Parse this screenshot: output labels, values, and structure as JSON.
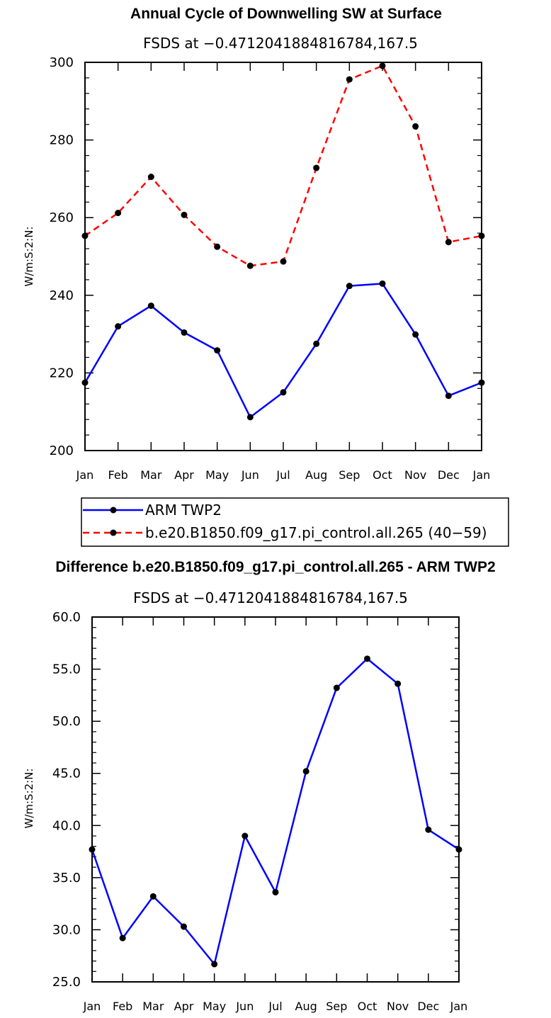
{
  "chart_data": [
    {
      "type": "line",
      "title": "Annual Cycle of Downwelling SW at Surface",
      "subtitle": "FSDS at −0.4712041884816784,167.5",
      "ylabel": "W/m:S:2:N:",
      "xlabel": "",
      "categories": [
        "Jan",
        "Feb",
        "Mar",
        "Apr",
        "May",
        "Jun",
        "Jul",
        "Aug",
        "Sep",
        "Oct",
        "Nov",
        "Dec",
        "Jan"
      ],
      "ylim": [
        200,
        300
      ],
      "yticks": [
        200,
        220,
        240,
        260,
        280,
        300
      ],
      "ytick_labels": [
        "200",
        "220",
        "240",
        "260",
        "280",
        "300"
      ],
      "series": [
        {
          "name": "ARM TWP2",
          "color": "#0000ff",
          "dash": "solid",
          "values": [
            217.5,
            232.0,
            237.3,
            230.4,
            225.8,
            208.6,
            215.0,
            227.5,
            242.4,
            243.0,
            229.9,
            214.1,
            217.5
          ]
        },
        {
          "name": "b.e20.B1850.f09_g17.pi_control.all.265 (40−59)",
          "color": "#ff0000",
          "dash": "dashed",
          "values": [
            255.3,
            261.2,
            270.5,
            260.7,
            252.5,
            247.6,
            248.7,
            272.8,
            295.6,
            299.1,
            283.5,
            253.7,
            255.3
          ]
        }
      ],
      "legend": "below"
    },
    {
      "type": "line",
      "title": "Difference b.e20.B1850.f09_g17.pi_control.all.265 - ARM TWP2",
      "subtitle": "FSDS at −0.4712041884816784,167.5",
      "ylabel": "W/m:S:2:N:",
      "xlabel": "",
      "categories": [
        "Jan",
        "Feb",
        "Mar",
        "Apr",
        "May",
        "Jun",
        "Jul",
        "Aug",
        "Sep",
        "Oct",
        "Nov",
        "Dec",
        "Jan"
      ],
      "ylim": [
        25,
        60
      ],
      "yticks": [
        25,
        30,
        35,
        40,
        45,
        50,
        55,
        60
      ],
      "ytick_labels": [
        "25.0",
        "30.0",
        "35.0",
        "40.0",
        "45.0",
        "50.0",
        "55.0",
        "60.0"
      ],
      "series": [
        {
          "name": "Difference",
          "color": "#0000ff",
          "dash": "solid",
          "values": [
            37.7,
            29.2,
            33.2,
            30.3,
            26.7,
            39.0,
            33.6,
            45.2,
            53.2,
            56.0,
            53.6,
            39.6,
            37.7
          ]
        }
      ]
    }
  ]
}
